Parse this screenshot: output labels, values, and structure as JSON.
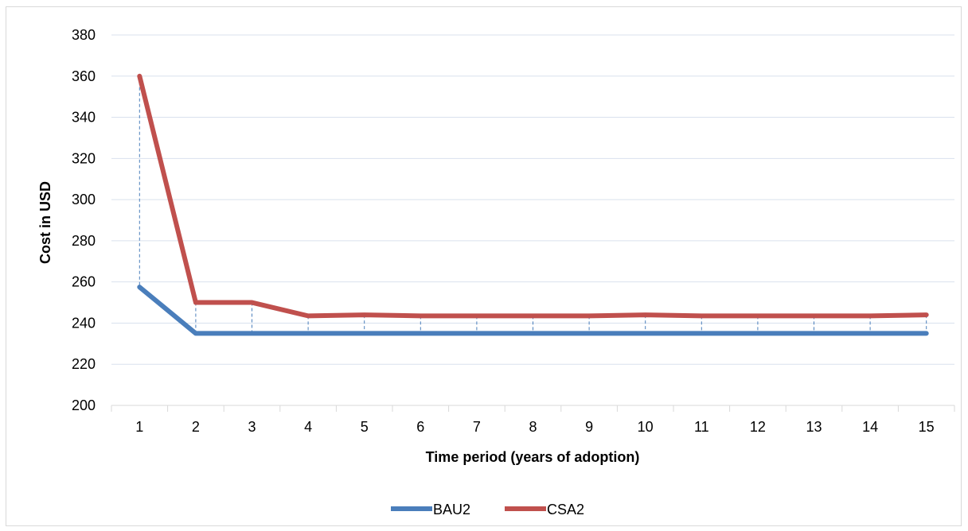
{
  "chart_data": {
    "type": "line",
    "title": "",
    "xlabel": "Time period (years of adoption)",
    "ylabel": "Cost in USD",
    "x": [
      1,
      2,
      3,
      4,
      5,
      6,
      7,
      8,
      9,
      10,
      11,
      12,
      13,
      14,
      15
    ],
    "ylim": [
      200,
      380
    ],
    "yticks": [
      200,
      220,
      240,
      260,
      280,
      300,
      320,
      340,
      360,
      380
    ],
    "grid": "horizontal",
    "legend_position": "bottom",
    "series": [
      {
        "name": "BAU2",
        "color": "#4a7ebb",
        "values": [
          257.5,
          235,
          235,
          235,
          235,
          235,
          235,
          235,
          235,
          235,
          235,
          235,
          235,
          235,
          235
        ]
      },
      {
        "name": "CSA2",
        "color": "#c0504d",
        "values": [
          360,
          250,
          250,
          243.5,
          244,
          243.5,
          243.5,
          243.5,
          243.5,
          244,
          243.5,
          243.5,
          243.5,
          243.5,
          244
        ]
      }
    ],
    "drop_lines": true,
    "drop_line_color": "#4a7ebb"
  }
}
